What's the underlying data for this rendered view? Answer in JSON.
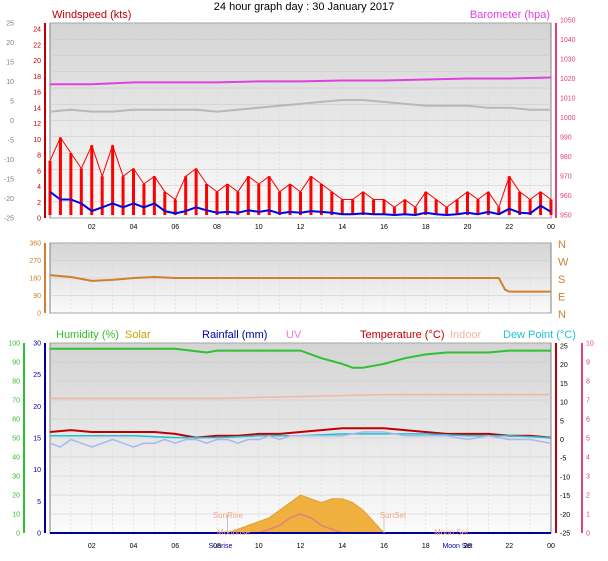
{
  "title": "24 hour graph day : 30 January 2017",
  "time_axis": {
    "min": 0,
    "max": 24,
    "ticks": [
      "02",
      "04",
      "06",
      "08",
      "10",
      "12",
      "14",
      "16",
      "18",
      "20",
      "22",
      "00"
    ]
  },
  "colors": {
    "windspeed": "#e00000",
    "gust": "#ff0000",
    "avg_wind": "#0000e0",
    "barometer": "#e040e0",
    "gray": "#b8b8b8",
    "direction": "#d08030",
    "humidity": "#30c030",
    "solar": "#c8a000",
    "rainfall": "#0000a0",
    "uv": "#e080e0",
    "temperature": "#c00000",
    "indoor": "#f0b8a0",
    "dewpoint": "#20c0d0",
    "pink_axis": "#e04080",
    "left_axis_green": "#00a000",
    "left_axis_red": "#c00000"
  },
  "chart_data": [
    {
      "type": "line",
      "panel": "wind",
      "labels": {
        "left": "Windspeed (kts)",
        "right": "Barometer (hpa)"
      },
      "outer_left_axis": {
        "min": -25,
        "max": 25,
        "ticks": [
          "25",
          "20",
          "15",
          "10",
          "5",
          "0",
          "-5",
          "-10",
          "-15",
          "-20",
          "-25"
        ]
      },
      "left_axis": {
        "min": 0,
        "max": 24,
        "ticks": [
          "24",
          "22",
          "20",
          "18",
          "16",
          "14",
          "12",
          "10",
          "8",
          "6",
          "4",
          "2",
          "0"
        ]
      },
      "right_axis": {
        "min": 950,
        "max": 1050,
        "ticks": [
          "1050",
          "1040",
          "1030",
          "1020",
          "1010",
          "1000",
          "990",
          "980",
          "970",
          "960",
          "950"
        ]
      },
      "series": [
        {
          "name": "Windspeed (kts)",
          "axis": "left",
          "style": "gust",
          "x": [
            0,
            0.5,
            1,
            1.5,
            2,
            2.5,
            3,
            3.5,
            4,
            4.5,
            5,
            5.5,
            6,
            6.5,
            7,
            7.5,
            8,
            8.5,
            9,
            9.5,
            10,
            10.5,
            11,
            11.5,
            12,
            12.5,
            13,
            13.5,
            14,
            14.5,
            15,
            15.5,
            16,
            16.5,
            17,
            17.5,
            18,
            18.5,
            19,
            19.5,
            20,
            20.5,
            21,
            21.5,
            22,
            22.5,
            23,
            23.5,
            24
          ],
          "y": [
            7,
            10,
            8,
            6,
            9,
            5,
            9,
            5,
            6,
            4,
            5,
            3,
            2,
            5,
            6,
            4,
            3,
            4,
            3,
            5,
            4,
            5,
            3,
            4,
            3,
            5,
            4,
            3,
            2,
            2,
            3,
            2,
            2,
            1,
            2,
            1,
            3,
            2,
            1,
            2,
            3,
            2,
            3,
            1,
            5,
            3,
            2,
            3,
            2
          ]
        },
        {
          "name": "",
          "axis": "left",
          "style": "avg",
          "x": [
            0,
            0.5,
            1,
            1.5,
            2,
            2.5,
            3,
            3.5,
            4,
            4.5,
            5,
            5.5,
            6,
            6.5,
            7,
            7.5,
            8,
            8.5,
            9,
            9.5,
            10,
            10.5,
            11,
            11.5,
            12,
            12.5,
            13,
            13.5,
            14,
            14.5,
            15,
            15.5,
            16,
            16.5,
            17,
            17.5,
            18,
            18.5,
            19,
            19.5,
            20,
            20.5,
            21,
            21.5,
            22,
            22.5,
            23,
            23.5,
            24
          ],
          "y": [
            3,
            2,
            2,
            1.5,
            0.5,
            1,
            1.5,
            1,
            1.5,
            1,
            1.5,
            0.5,
            0.2,
            0.5,
            1,
            0.6,
            0.3,
            0.4,
            0.3,
            0.6,
            0.4,
            0.6,
            0.2,
            0.4,
            0.3,
            0.5,
            0.4,
            0.3,
            0.1,
            0.1,
            0.2,
            0.1,
            0.1,
            0,
            0.1,
            0,
            0.3,
            0.1,
            0,
            0.1,
            0.3,
            0.1,
            0.4,
            0.1,
            0.8,
            0.3,
            0.2,
            1.2,
            0.4
          ]
        },
        {
          "name": "Barometer (hpa)",
          "axis": "right",
          "style": "baro",
          "x": [
            0,
            2,
            4,
            6,
            8,
            10,
            12,
            14,
            16,
            18,
            20,
            22,
            24
          ],
          "y": [
            1017,
            1017,
            1018,
            1018,
            1018,
            1018.5,
            1018.5,
            1019,
            1019,
            1019.5,
            1020,
            1020,
            1020.5
          ]
        },
        {
          "name": "",
          "axis": "right",
          "style": "gray",
          "x": [
            0,
            1,
            2,
            3,
            4,
            5,
            6,
            7,
            8,
            9,
            10,
            11,
            12,
            13,
            14,
            15,
            16,
            17,
            18,
            19,
            20,
            21,
            22,
            23,
            24
          ],
          "y": [
            1003,
            1004,
            1003,
            1003,
            1004,
            1004,
            1004,
            1004,
            1003,
            1004,
            1005,
            1006,
            1007,
            1008,
            1009,
            1009,
            1008,
            1007,
            1006,
            1006,
            1006,
            1005,
            1005,
            1004,
            1004
          ]
        }
      ]
    },
    {
      "type": "line",
      "panel": "direction",
      "left_axis": {
        "min": 0,
        "max": 360,
        "ticks": [
          "360",
          "270",
          "180",
          "90",
          "0"
        ]
      },
      "right_labels": [
        "N",
        "W",
        "S",
        "E",
        "N"
      ],
      "series": [
        {
          "name": "",
          "axis": "left",
          "style": "dir",
          "x": [
            0,
            1,
            2,
            3,
            4,
            5,
            6,
            8,
            10,
            12,
            14,
            16,
            18,
            20,
            21.5,
            21.8,
            22,
            23,
            24
          ],
          "y": [
            195,
            185,
            165,
            170,
            180,
            185,
            180,
            180,
            180,
            180,
            180,
            180,
            180,
            180,
            180,
            120,
            110,
            110,
            110
          ]
        }
      ]
    },
    {
      "type": "line",
      "panel": "temp",
      "labels": [
        "Humidity (%)",
        "Solar",
        "Rainfall (mm)",
        "UV",
        "Temperature (°C)",
        "Indoor",
        "Dew Point (°C)"
      ],
      "outer_left_axis": {
        "min": 0,
        "max": 100,
        "ticks": [
          "100",
          "90",
          "80",
          "70",
          "60",
          "50",
          "40",
          "30",
          "20",
          "10",
          "0"
        ]
      },
      "left_axis": {
        "min": 0,
        "max": 30,
        "ticks": [
          "30",
          "25",
          "20",
          "15",
          "10",
          "5",
          "0"
        ]
      },
      "right_axis": {
        "min": -25,
        "max": 25,
        "ticks": [
          "25",
          "20",
          "15",
          "10",
          "5",
          "0",
          "-5",
          "-10",
          "-15",
          "-20",
          "-25"
        ]
      },
      "outer_right_axis": {
        "min": 0,
        "max": 10,
        "ticks": [
          "10",
          "9",
          "8",
          "7",
          "6",
          "5",
          "4",
          "3",
          "2",
          "1",
          "0"
        ]
      },
      "annotations": [
        "SunRise",
        "SunSet",
        "Moonrise",
        "Moon Set",
        "Sunrise",
        "Moon Set"
      ],
      "series": [
        {
          "name": "Humidity (%)",
          "axis": "outer_left",
          "style": "hum",
          "x": [
            0,
            2,
            4,
            6,
            7.5,
            8,
            10,
            12,
            13,
            14,
            14.5,
            15,
            16,
            17,
            18,
            19,
            20,
            21,
            22,
            23,
            24
          ],
          "y": [
            97,
            97,
            97,
            97,
            95,
            96,
            96,
            96,
            92,
            89,
            87,
            87,
            89,
            92,
            94,
            95,
            95,
            95,
            96,
            96,
            96
          ]
        },
        {
          "name": "Temperature (°C)",
          "axis": "right",
          "style": "temp",
          "x": [
            0,
            1,
            2,
            3,
            4,
            5,
            6,
            7,
            8,
            9,
            10,
            11,
            12,
            13,
            14,
            15,
            16,
            17,
            18,
            19,
            20,
            21,
            22,
            23,
            24
          ],
          "y": [
            2,
            2.5,
            2,
            2,
            2,
            2,
            1.5,
            0.5,
            1,
            1,
            1.5,
            1.5,
            2,
            2.5,
            3,
            3,
            3,
            2.5,
            2,
            1.5,
            1.5,
            1.5,
            1,
            1,
            0.5
          ]
        },
        {
          "name": "Dew Point (°C)",
          "axis": "right",
          "style": "dew",
          "x": [
            0,
            2,
            4,
            6,
            8,
            10,
            12,
            14,
            16,
            18,
            20,
            22,
            24
          ],
          "y": [
            1,
            1,
            1,
            0.5,
            0.5,
            1,
            1,
            1.5,
            1.5,
            1.5,
            1,
            1,
            0.5
          ]
        },
        {
          "name": "Indoor",
          "axis": "right",
          "style": "indoor",
          "x": [
            0,
            4,
            8,
            12,
            16,
            20,
            24
          ],
          "y": [
            11,
            11,
            11,
            11.5,
            12,
            12,
            12
          ]
        },
        {
          "name": "",
          "axis": "right",
          "style": "scatter_blue",
          "x": [
            0,
            0.5,
            1,
            1.5,
            2,
            2.5,
            3,
            3.5,
            4,
            4.5,
            5,
            5.5,
            6,
            6.5,
            7,
            7.5,
            8,
            8.5,
            9,
            9.5,
            10,
            10.5,
            11,
            11.5,
            12,
            13,
            14,
            15,
            16,
            17,
            18,
            19,
            20,
            21,
            22,
            23,
            24
          ],
          "y": [
            -1,
            -2,
            0,
            -1,
            -2,
            -1,
            0,
            -1,
            -2,
            -1,
            -1,
            0,
            -1,
            0,
            0,
            -1,
            0,
            0,
            -1,
            0,
            0,
            1,
            0,
            1,
            1,
            1,
            1,
            2,
            2,
            1,
            1,
            1,
            0,
            1,
            0,
            0,
            -1
          ]
        },
        {
          "name": "Solar",
          "axis": "outer_right",
          "style": "solar",
          "x": [
            8.5,
            9,
            9.5,
            10,
            10.5,
            11,
            11.5,
            12,
            12.5,
            13,
            13.5,
            14,
            14.5,
            15,
            15.5,
            16
          ],
          "y": [
            0,
            0.1,
            0.2,
            0.3,
            0.4,
            0.6,
            0.8,
            1.0,
            0.9,
            0.8,
            0.9,
            0.9,
            0.8,
            0.6,
            0.3,
            0
          ]
        },
        {
          "name": "UV",
          "axis": "outer_right",
          "style": "uv",
          "x": [
            10,
            11,
            11.5,
            12,
            12.5,
            13,
            14
          ],
          "y": [
            0,
            0.2,
            0.4,
            0.5,
            0.4,
            0.2,
            0
          ]
        },
        {
          "name": "Rainfall (mm)",
          "axis": "left",
          "style": "rain",
          "x": [
            0,
            24
          ],
          "y": [
            0,
            0
          ]
        }
      ]
    }
  ]
}
